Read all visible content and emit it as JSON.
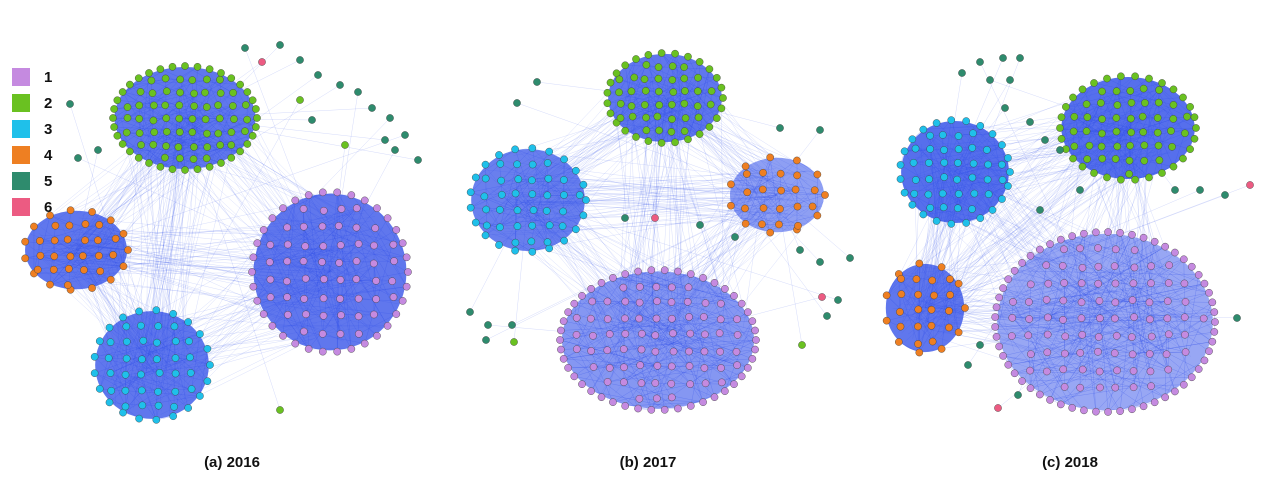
{
  "legend": [
    {
      "label": "1",
      "color": "#c58ae0"
    },
    {
      "label": "2",
      "color": "#6ac121"
    },
    {
      "label": "3",
      "color": "#1fc0ea"
    },
    {
      "label": "4",
      "color": "#ee7f22"
    },
    {
      "label": "5",
      "color": "#2e8b6d"
    },
    {
      "label": "6",
      "color": "#ec5b82"
    }
  ],
  "edge_color": "#2f4de8",
  "panels": [
    {
      "caption": "(a)  2016"
    },
    {
      "caption": "(b)  2017"
    },
    {
      "caption": "(c)  2018"
    }
  ]
}
